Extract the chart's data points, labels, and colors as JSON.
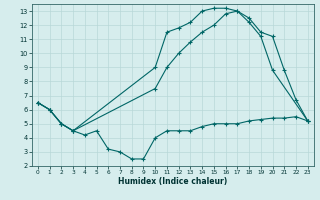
{
  "title": "",
  "xlabel": "Humidex (Indice chaleur)",
  "xlim": [
    -0.5,
    23.5
  ],
  "ylim": [
    2,
    13.5
  ],
  "yticks": [
    2,
    3,
    4,
    5,
    6,
    7,
    8,
    9,
    10,
    11,
    12,
    13
  ],
  "xticks": [
    0,
    1,
    2,
    3,
    4,
    5,
    6,
    7,
    8,
    9,
    10,
    11,
    12,
    13,
    14,
    15,
    16,
    17,
    18,
    19,
    20,
    21,
    22,
    23
  ],
  "bg_color": "#d6eded",
  "grid_color": "#b8d8d8",
  "line_color": "#006666",
  "line1_x": [
    0,
    1,
    2,
    3,
    10,
    11,
    12,
    13,
    14,
    15,
    16,
    17,
    18,
    19,
    20,
    23
  ],
  "line1_y": [
    6.5,
    6.0,
    5.0,
    4.5,
    9.0,
    11.5,
    11.8,
    12.2,
    13.0,
    13.2,
    13.2,
    13.0,
    12.2,
    11.2,
    8.8,
    5.2
  ],
  "line2_x": [
    0,
    1,
    2,
    3,
    10,
    11,
    12,
    13,
    14,
    15,
    16,
    17,
    18,
    19,
    20,
    21,
    22,
    23
  ],
  "line2_y": [
    6.5,
    6.0,
    5.0,
    4.5,
    7.5,
    9.0,
    10.0,
    10.8,
    11.5,
    12.0,
    12.8,
    13.0,
    12.5,
    11.5,
    11.2,
    8.8,
    6.7,
    5.2
  ],
  "line3_x": [
    0,
    1,
    2,
    3,
    4,
    5,
    6,
    7,
    8,
    9,
    10,
    11,
    12,
    13,
    14,
    15,
    16,
    17,
    18,
    19,
    20,
    21,
    22,
    23
  ],
  "line3_y": [
    6.5,
    6.0,
    5.0,
    4.5,
    4.2,
    4.5,
    3.2,
    3.0,
    2.5,
    2.5,
    4.0,
    4.5,
    4.5,
    4.5,
    4.8,
    5.0,
    5.0,
    5.0,
    5.2,
    5.3,
    5.4,
    5.4,
    5.5,
    5.2
  ]
}
